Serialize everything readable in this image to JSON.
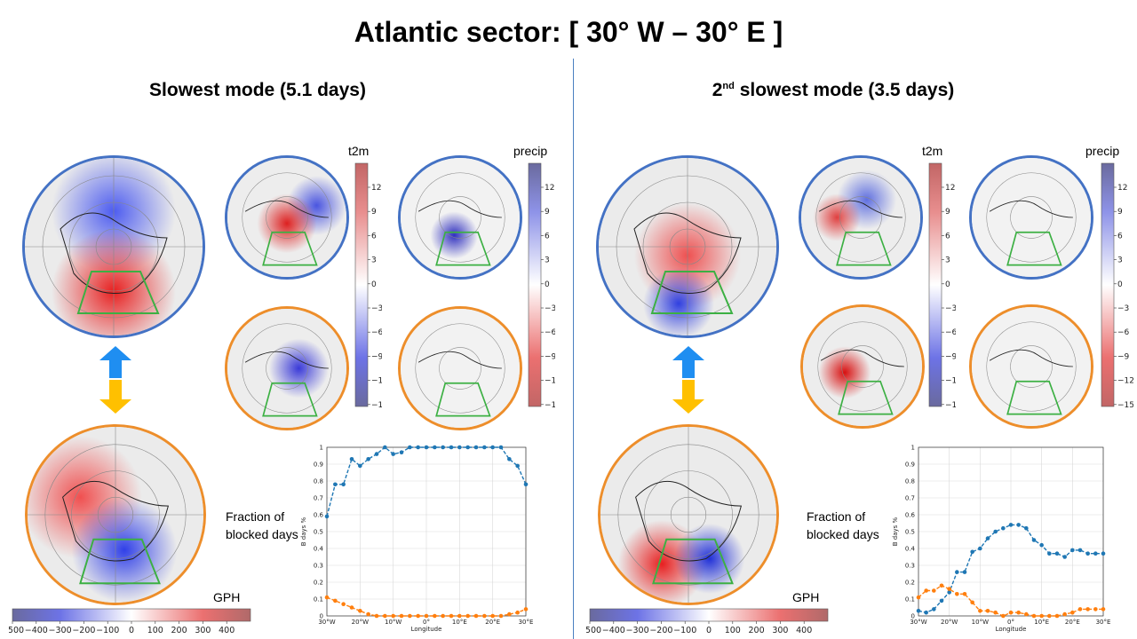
{
  "title": "Atlantic sector: [ 30° W – 30° E ]",
  "left_panel": {
    "title": "Slowest mode (5.1 days)",
    "t2m_label": "t2m",
    "precip_label": "precip",
    "gph_label": "GPH",
    "fraction_label_line1": "Fraction of",
    "fraction_label_line2": "blocked days"
  },
  "right_panel": {
    "title_prefix": "2",
    "title_sup": "nd",
    "title_suffix": " slowest mode (3.5 days)",
    "t2m_label": "t2m",
    "precip_label": "precip",
    "gph_label": "GPH",
    "fraction_label_line1": "Fraction of",
    "fraction_label_line2": "blocked days"
  },
  "colorbar_small_ticks": [
    "12",
    "9",
    "6",
    "3",
    "0",
    "−3",
    "−6",
    "−9",
    "−12",
    "−15"
  ],
  "colorbar_gph_ticks": [
    "−500",
    "−400",
    "−300",
    "−200",
    "−100",
    "0",
    "100",
    "200",
    "300",
    "400"
  ],
  "colors": {
    "mode1_border": "#4472c4",
    "mode2_border": "#ed8e2b",
    "arrow_up": "#1f8ef1",
    "arrow_down": "#ffc000",
    "series_blue": "#1f77b4",
    "series_orange": "#ff7f0e",
    "sector_box": "#3cb043"
  },
  "chart_data": [
    {
      "type": "line",
      "xlabel": "Longitude",
      "ylabel": "B days %",
      "x_tick_labels": [
        "30°W",
        "20°W",
        "10°W",
        "0°",
        "10°E",
        "20°E",
        "30°E"
      ],
      "y_tick_labels": [
        "0",
        "0.1",
        "0.2",
        "0.3",
        "0.4",
        "0.5",
        "0.6",
        "0.7",
        "0.8",
        "0.9",
        "1"
      ],
      "xlim": [
        -30,
        30
      ],
      "ylim": [
        0,
        1
      ],
      "grid": true,
      "x": [
        -30,
        -27.5,
        -25,
        -22.5,
        -20,
        -17.5,
        -15,
        -12.5,
        -10,
        -7.5,
        -5,
        -2.5,
        0,
        2.5,
        5,
        7.5,
        10,
        12.5,
        15,
        17.5,
        20,
        22.5,
        25,
        27.5,
        30
      ],
      "series": [
        {
          "values": [
            0.59,
            0.78,
            0.78,
            0.93,
            0.89,
            0.93,
            0.96,
            1.0,
            0.96,
            0.97,
            1.0,
            1.0,
            1.0,
            1.0,
            1.0,
            1.0,
            1.0,
            1.0,
            1.0,
            1.0,
            1.0,
            1.0,
            0.93,
            0.89,
            0.78
          ],
          "color": "#1f77b4",
          "style": "dashed"
        },
        {
          "values": [
            0.11,
            0.09,
            0.07,
            0.05,
            0.03,
            0.01,
            0.0,
            0.0,
            0.0,
            0.0,
            0.0,
            0.0,
            0.0,
            0.0,
            0.0,
            0.0,
            0.0,
            0.0,
            0.0,
            0.0,
            0.0,
            0.0,
            0.01,
            0.02,
            0.04
          ],
          "color": "#ff7f0e",
          "style": "dashed"
        }
      ]
    },
    {
      "type": "line",
      "xlabel": "Longitude",
      "ylabel": "B days %",
      "x_tick_labels": [
        "30°W",
        "20°W",
        "10°W",
        "0°",
        "10°E",
        "20°E",
        "30°E"
      ],
      "y_tick_labels": [
        "0",
        "0.1",
        "0.2",
        "0.3",
        "0.4",
        "0.5",
        "0.6",
        "0.7",
        "0.8",
        "0.9",
        "1"
      ],
      "xlim": [
        -30,
        30
      ],
      "ylim": [
        0,
        1
      ],
      "grid": true,
      "x": [
        -30,
        -27.5,
        -25,
        -22.5,
        -20,
        -17.5,
        -15,
        -12.5,
        -10,
        -7.5,
        -5,
        -2.5,
        0,
        2.5,
        5,
        7.5,
        10,
        12.5,
        15,
        17.5,
        20,
        22.5,
        25,
        27.5,
        30
      ],
      "series": [
        {
          "values": [
            0.03,
            0.02,
            0.04,
            0.09,
            0.14,
            0.26,
            0.26,
            0.38,
            0.4,
            0.46,
            0.5,
            0.52,
            0.54,
            0.54,
            0.52,
            0.45,
            0.42,
            0.37,
            0.37,
            0.35,
            0.39,
            0.39,
            0.37,
            0.37,
            0.37
          ],
          "color": "#1f77b4",
          "style": "dashed"
        },
        {
          "values": [
            0.11,
            0.15,
            0.15,
            0.18,
            0.16,
            0.13,
            0.13,
            0.08,
            0.03,
            0.03,
            0.02,
            0.0,
            0.02,
            0.02,
            0.01,
            0.0,
            0.0,
            0.0,
            0.0,
            0.01,
            0.02,
            0.04,
            0.04,
            0.04,
            0.04
          ],
          "color": "#ff7f0e",
          "style": "dashed"
        }
      ]
    }
  ]
}
